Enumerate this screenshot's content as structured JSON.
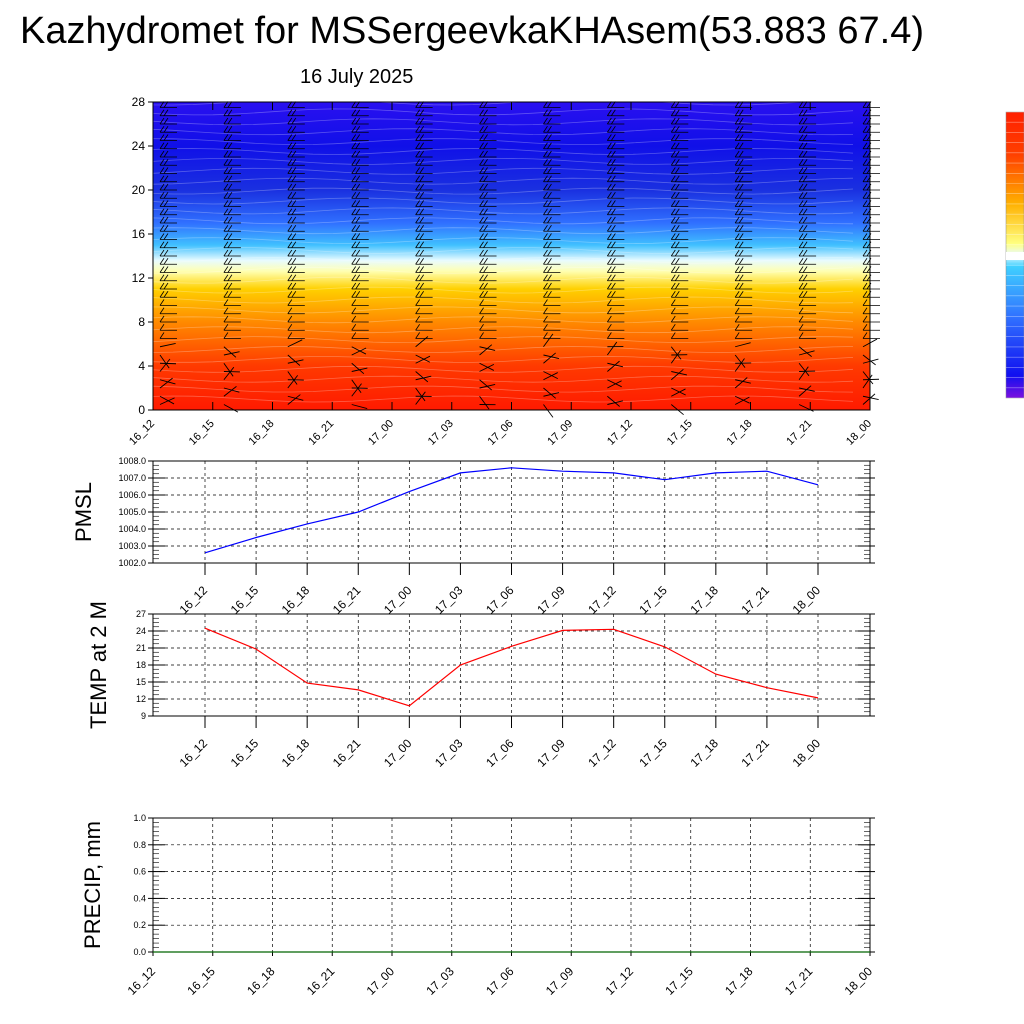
{
  "title": "Kazhydromet for MSSergeevkaKHAsem(53.883 67.4)",
  "subtitle": "16 July 2025",
  "colors": {
    "pmsl_line": "#0000ff",
    "temp_line": "#ff0000",
    "precip_line": "#006400",
    "warm": "#ff2000",
    "cold": "#1010e0"
  },
  "chart_data": [
    {
      "id": "cross-section",
      "type": "heatmap",
      "title": "",
      "xlabel": "",
      "ylabel": "",
      "x_tick_labels": [
        "16_12",
        "16_15",
        "16_18",
        "16_21",
        "17_00",
        "17_03",
        "17_06",
        "17_09",
        "17_12",
        "17_15",
        "17_18",
        "17_21",
        "18_00"
      ],
      "y_ticks": [
        0,
        4,
        8,
        12,
        16,
        20,
        24,
        28
      ],
      "ylim": [
        0,
        28
      ],
      "color_stops": [
        {
          "level": 0,
          "color": "#ff1a00"
        },
        {
          "level": 4,
          "color": "#ff3a00"
        },
        {
          "level": 8,
          "color": "#ff8a00"
        },
        {
          "level": 11,
          "color": "#ffd000"
        },
        {
          "level": 12.6,
          "color": "#ffffb0"
        },
        {
          "level": 13.6,
          "color": "#e8fbff"
        },
        {
          "level": 15,
          "color": "#40c0ff"
        },
        {
          "level": 17,
          "color": "#3070ff"
        },
        {
          "level": 20,
          "color": "#1a30e0"
        },
        {
          "level": 24,
          "color": "#1010e8"
        },
        {
          "level": 28,
          "color": "#2a10f0"
        }
      ],
      "wind_barbs": "present",
      "colorbar": "right"
    },
    {
      "id": "pmsl",
      "type": "line",
      "ylabel": "PMSL",
      "xlabel": "",
      "x": [
        "16_12",
        "16_15",
        "16_18",
        "16_21",
        "17_00",
        "17_03",
        "17_06",
        "17_09",
        "17_12",
        "17_15",
        "17_18",
        "17_21",
        "18_00"
      ],
      "y_ticks": [
        "1002.0",
        "1003.0",
        "1004.0",
        "1005.0",
        "1006.0",
        "1007.0",
        "1008.0"
      ],
      "ylim": [
        1002,
        1008
      ],
      "series": [
        {
          "values": [
            1002.6,
            1003.5,
            1004.3,
            1005.0,
            1006.2,
            1007.3,
            1007.6,
            1007.4,
            1007.3,
            1006.9,
            1007.3,
            1007.4,
            1006.6
          ]
        }
      ],
      "grid": true
    },
    {
      "id": "temp",
      "type": "line",
      "ylabel": "TEMP at 2 M",
      "xlabel": "",
      "x": [
        "16_12",
        "16_15",
        "16_18",
        "16_21",
        "17_00",
        "17_03",
        "17_06",
        "17_09",
        "17_12",
        "17_15",
        "17_18",
        "17_21",
        "18_00"
      ],
      "y_ticks": [
        "9",
        "12",
        "15",
        "18",
        "21",
        "24",
        "27"
      ],
      "ylim": [
        9,
        27
      ],
      "series": [
        {
          "values": [
            24.5,
            20.8,
            14.8,
            13.6,
            10.8,
            18.0,
            21.3,
            24.1,
            24.3,
            21.2,
            16.4,
            14.0,
            12.2
          ]
        }
      ],
      "grid": true
    },
    {
      "id": "precip",
      "type": "line",
      "ylabel": "PRECIP, mm",
      "xlabel": "",
      "x": [
        "16_12",
        "16_15",
        "16_18",
        "16_21",
        "17_00",
        "17_03",
        "17_06",
        "17_09",
        "17_12",
        "17_15",
        "17_18",
        "17_21",
        "18_00"
      ],
      "y_ticks": [
        "0.0",
        "0.2",
        "0.4",
        "0.6",
        "0.8",
        "1.0"
      ],
      "ylim": [
        0,
        1
      ],
      "series": [
        {
          "values": [
            0,
            0,
            0,
            0,
            0,
            0,
            0,
            0,
            0,
            0,
            0,
            0,
            0
          ]
        }
      ],
      "grid": true
    }
  ]
}
